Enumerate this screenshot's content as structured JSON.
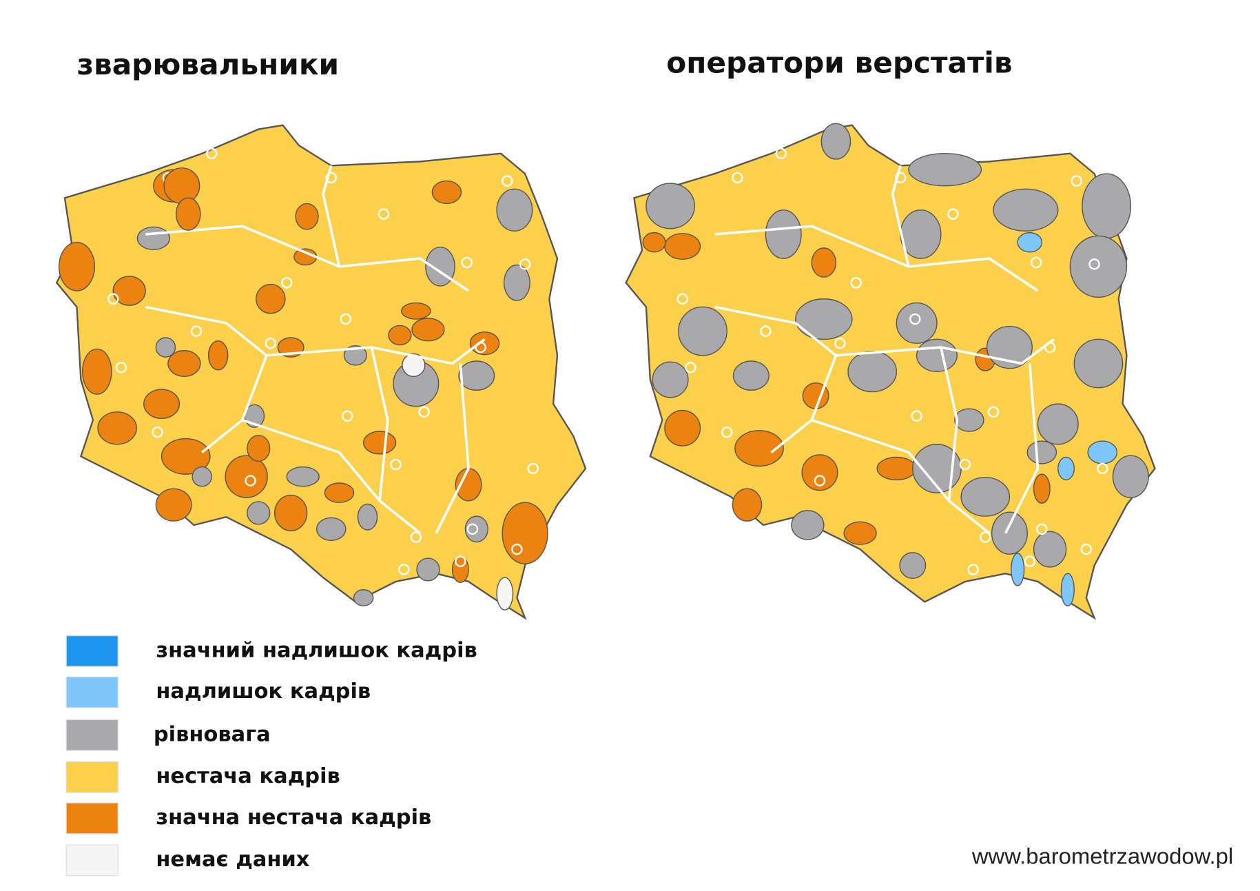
{
  "titles": [
    "зварювальники",
    "оператори верстатів"
  ],
  "legend": [
    {
      "label": "значний надлишок кадрів",
      "color": "#1e96f0"
    },
    {
      "label": "надлишок кадрів",
      "color": "#7fc6fb"
    },
    {
      "label": "рівновага",
      "color": "#a9a9ab"
    },
    {
      "label": "нестача кадрів",
      "color": "#fdd04c"
    },
    {
      "label": "значна нестача кадрів",
      "color": "#ec8311"
    },
    {
      "label": "немає даних",
      "color": "#f5f5f5"
    }
  ],
  "source": "www.barometrzawodow.pl"
}
